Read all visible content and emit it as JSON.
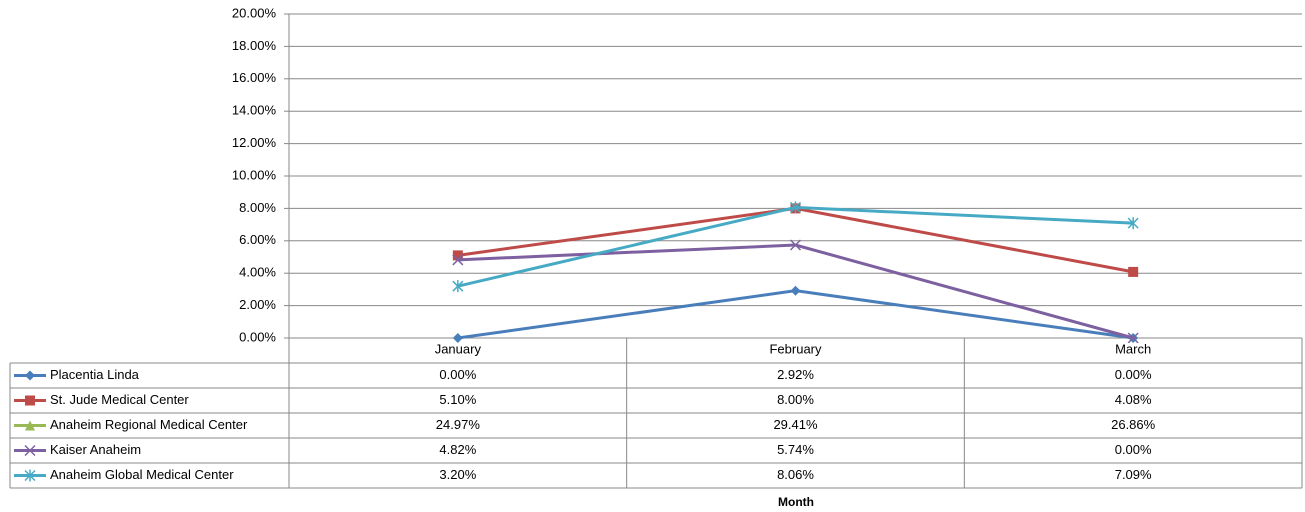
{
  "chart_data": {
    "type": "line",
    "categories": [
      "January",
      "February",
      "March"
    ],
    "x_label": "Month",
    "ylim": [
      0,
      20
    ],
    "yticks": [
      {
        "value": 0,
        "label": "0.00%"
      },
      {
        "value": 2,
        "label": "2.00%"
      },
      {
        "value": 4,
        "label": "4.00%"
      },
      {
        "value": 6,
        "label": "6.00%"
      },
      {
        "value": 8,
        "label": "8.00%"
      },
      {
        "value": 10,
        "label": "10.00%"
      },
      {
        "value": 12,
        "label": "12.00%"
      },
      {
        "value": 14,
        "label": "14.00%"
      },
      {
        "value": 16,
        "label": "16.00%"
      },
      {
        "value": 18,
        "label": "18.00%"
      },
      {
        "value": 20,
        "label": "20.00%"
      }
    ],
    "grid": true,
    "series": [
      {
        "name": "Placentia Linda",
        "color": "#4a7ebb",
        "marker": "diamond",
        "values": [
          0,
          2.92,
          0
        ],
        "value_labels": [
          "0.00%",
          "2.92%",
          "0.00%"
        ]
      },
      {
        "name": "St. Jude Medical Center",
        "color": "#be4b48",
        "marker": "square",
        "values": [
          5.1,
          8,
          4.08
        ],
        "value_labels": [
          "5.10%",
          "8.00%",
          "4.08%"
        ]
      },
      {
        "name": "Anaheim  Regional Medical Center",
        "color": "#98b954",
        "marker": "triangle",
        "values": [
          24.97,
          29.41,
          26.86
        ],
        "value_labels": [
          "24.97%",
          "29.41%",
          "26.86%"
        ]
      },
      {
        "name": "Kaiser Anaheim",
        "color": "#7d60a0",
        "marker": "x",
        "values": [
          4.82,
          5.74,
          0
        ],
        "value_labels": [
          "4.82%",
          "5.74%",
          "0.00%"
        ]
      },
      {
        "name": "Anaheim Global Medical Center",
        "color": "#46aac5",
        "marker": "asterisk",
        "values": [
          3.2,
          8.06,
          7.09
        ],
        "value_labels": [
          "3.20%",
          "8.06%",
          "7.09%"
        ]
      }
    ]
  }
}
